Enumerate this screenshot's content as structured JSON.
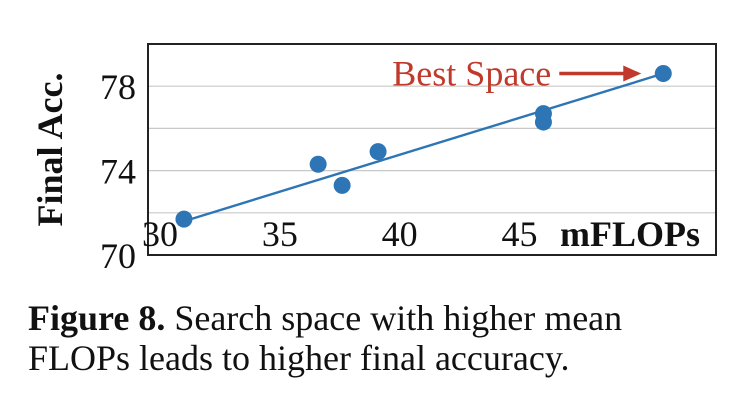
{
  "chart_data": {
    "type": "scatter",
    "ylabel": "Final Acc.",
    "xlabel": "mFLOPs",
    "xlim": [
      29.5,
      53.2
    ],
    "ylim": [
      70.0,
      80.0
    ],
    "x_ticks": [
      30,
      35,
      40,
      45
    ],
    "y_ticks": [
      70,
      74,
      78
    ],
    "grid": "horizontal",
    "series": [
      {
        "color": "#2e75b6",
        "points": [
          {
            "x": 31.0,
            "y": 71.7
          },
          {
            "x": 36.6,
            "y": 74.3
          },
          {
            "x": 37.6,
            "y": 73.3
          },
          {
            "x": 39.1,
            "y": 74.9
          },
          {
            "x": 46.0,
            "y": 76.7
          },
          {
            "x": 46.0,
            "y": 76.3
          },
          {
            "x": 51.0,
            "y": 78.6
          }
        ]
      }
    ],
    "trend_line": {
      "x1": 31.0,
      "y1": 71.6,
      "x2": 51.0,
      "y2": 78.6,
      "color": "#2e75b6"
    },
    "annotation": {
      "text": "Best Space",
      "color": "#c0392b",
      "target_point": 6
    }
  },
  "caption": {
    "label": "Figure 8.",
    "text": " Search space with higher mean FLOPs leads to higher final accuracy."
  }
}
